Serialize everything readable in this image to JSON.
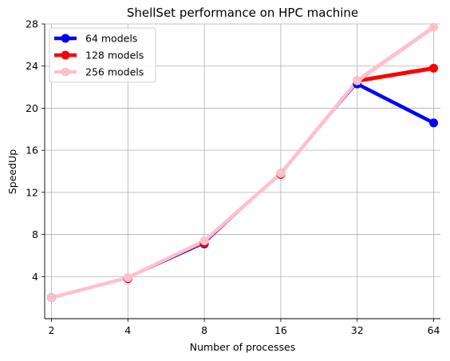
{
  "chart_data": {
    "type": "line",
    "title": "ShellSet performance on HPC machine",
    "xlabel": "Number of processes",
    "ylabel": "SpeedUp",
    "x": [
      2,
      4,
      8,
      16,
      32,
      64
    ],
    "x_scale": "log2",
    "x_tick_labels": [
      "2",
      "4",
      "8",
      "16",
      "32",
      "64"
    ],
    "ylim": [
      0,
      28
    ],
    "y_ticks": [
      4,
      8,
      12,
      16,
      20,
      24,
      28
    ],
    "grid": true,
    "legend_position": "top-left",
    "series": [
      {
        "name": "64 models",
        "color": "#0000ff",
        "values": [
          2.0,
          3.8,
          7.1,
          13.8,
          22.3,
          18.6
        ]
      },
      {
        "name": "128 models",
        "color": "#ff0000",
        "values": [
          2.0,
          3.8,
          7.2,
          13.7,
          22.6,
          23.8
        ]
      },
      {
        "name": "256 models",
        "color": "#ffc0cb",
        "values": [
          2.0,
          3.9,
          7.4,
          13.8,
          22.6,
          27.7
        ]
      }
    ]
  }
}
